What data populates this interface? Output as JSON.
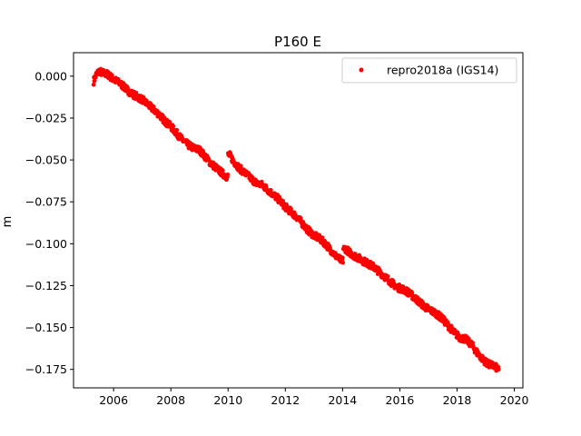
{
  "chart_data": {
    "type": "scatter",
    "title": "P160 E",
    "xlabel": "",
    "ylabel": "m",
    "xlim": [
      2004.6,
      2020.3
    ],
    "ylim": [
      -0.186,
      0.014
    ],
    "x_ticks": [
      2006,
      2008,
      2010,
      2012,
      2014,
      2016,
      2018,
      2020
    ],
    "y_ticks": [
      0.0,
      -0.025,
      -0.05,
      -0.075,
      -0.1,
      -0.125,
      -0.15,
      -0.175
    ],
    "y_tick_labels": [
      "0.000",
      "−0.025",
      "−0.050",
      "−0.075",
      "−0.100",
      "−0.125",
      "−0.150",
      "−0.175"
    ],
    "grid": false,
    "legend": {
      "placement": "top-right",
      "entries": [
        "repro2018a (IGS14)"
      ]
    },
    "colors": {
      "series": "#ff0000"
    },
    "series": [
      {
        "name": "repro2018a (IGS14)",
        "marker": "point",
        "points": [
          [
            2005.3,
            -0.003
          ],
          [
            2005.4,
            0.001
          ],
          [
            2005.5,
            0.003
          ],
          [
            2005.6,
            0.002
          ],
          [
            2005.8,
            0.001
          ],
          [
            2006.0,
            -0.002
          ],
          [
            2006.2,
            -0.004
          ],
          [
            2006.4,
            -0.007
          ],
          [
            2006.6,
            -0.01
          ],
          [
            2006.8,
            -0.012
          ],
          [
            2007.0,
            -0.014
          ],
          [
            2007.2,
            -0.017
          ],
          [
            2007.4,
            -0.02
          ],
          [
            2007.6,
            -0.023
          ],
          [
            2007.8,
            -0.027
          ],
          [
            2008.0,
            -0.03
          ],
          [
            2008.2,
            -0.034
          ],
          [
            2008.4,
            -0.038
          ],
          [
            2008.6,
            -0.041
          ],
          [
            2008.8,
            -0.043
          ],
          [
            2009.0,
            -0.044
          ],
          [
            2009.2,
            -0.048
          ],
          [
            2009.4,
            -0.052
          ],
          [
            2009.6,
            -0.055
          ],
          [
            2009.8,
            -0.058
          ],
          [
            2009.95,
            -0.06
          ],
          [
            2010.05,
            -0.047
          ],
          [
            2010.2,
            -0.051
          ],
          [
            2010.4,
            -0.055
          ],
          [
            2010.6,
            -0.058
          ],
          [
            2010.8,
            -0.061
          ],
          [
            2011.0,
            -0.064
          ],
          [
            2011.2,
            -0.065
          ],
          [
            2011.4,
            -0.068
          ],
          [
            2011.6,
            -0.071
          ],
          [
            2011.8,
            -0.074
          ],
          [
            2012.0,
            -0.078
          ],
          [
            2012.2,
            -0.081
          ],
          [
            2012.4,
            -0.084
          ],
          [
            2012.6,
            -0.088
          ],
          [
            2012.8,
            -0.092
          ],
          [
            2013.0,
            -0.095
          ],
          [
            2013.2,
            -0.097
          ],
          [
            2013.4,
            -0.1
          ],
          [
            2013.6,
            -0.104
          ],
          [
            2013.8,
            -0.108
          ],
          [
            2013.95,
            -0.11
          ],
          [
            2014.1,
            -0.103
          ],
          [
            2014.3,
            -0.106
          ],
          [
            2014.5,
            -0.108
          ],
          [
            2014.7,
            -0.11
          ],
          [
            2014.9,
            -0.112
          ],
          [
            2015.1,
            -0.114
          ],
          [
            2015.3,
            -0.117
          ],
          [
            2015.5,
            -0.12
          ],
          [
            2015.7,
            -0.123
          ],
          [
            2015.9,
            -0.126
          ],
          [
            2016.1,
            -0.127
          ],
          [
            2016.3,
            -0.129
          ],
          [
            2016.5,
            -0.132
          ],
          [
            2016.7,
            -0.135
          ],
          [
            2016.9,
            -0.138
          ],
          [
            2017.1,
            -0.14
          ],
          [
            2017.3,
            -0.142
          ],
          [
            2017.5,
            -0.145
          ],
          [
            2017.7,
            -0.149
          ],
          [
            2017.9,
            -0.153
          ],
          [
            2018.1,
            -0.156
          ],
          [
            2018.3,
            -0.157
          ],
          [
            2018.5,
            -0.16
          ],
          [
            2018.7,
            -0.165
          ],
          [
            2018.9,
            -0.169
          ],
          [
            2019.1,
            -0.172
          ],
          [
            2019.3,
            -0.173
          ],
          [
            2019.45,
            -0.175
          ]
        ]
      }
    ]
  }
}
